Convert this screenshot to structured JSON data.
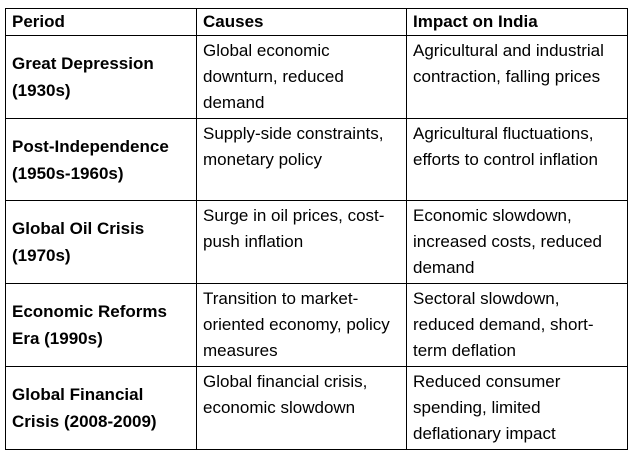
{
  "table": {
    "headers": {
      "period": "Period",
      "causes": "Causes",
      "impact": "Impact on India"
    },
    "rows": [
      {
        "period": "Great Depression (1930s)",
        "causes": "Global economic downturn, reduced demand",
        "impact": "Agricultural and industrial contraction, falling prices"
      },
      {
        "period": "Post-Independence (1950s-1960s)",
        "causes": "Supply-side constraints, monetary policy",
        "impact": "Agricultural fluctuations, efforts to control inflation"
      },
      {
        "period": "Global Oil Crisis (1970s)",
        "causes": "Surge in oil prices, cost-push inflation",
        "impact": "Economic slowdown, increased costs, reduced demand"
      },
      {
        "period": "Economic Reforms Era (1990s)",
        "causes": "Transition to market-oriented economy, policy measures",
        "impact": "Sectoral slowdown, reduced demand, short-term deflation"
      },
      {
        "period": "Global Financial Crisis (2008-2009)",
        "causes": "Global financial crisis, economic slowdown",
        "impact": "Reduced consumer spending, limited deflationary impact"
      }
    ]
  }
}
